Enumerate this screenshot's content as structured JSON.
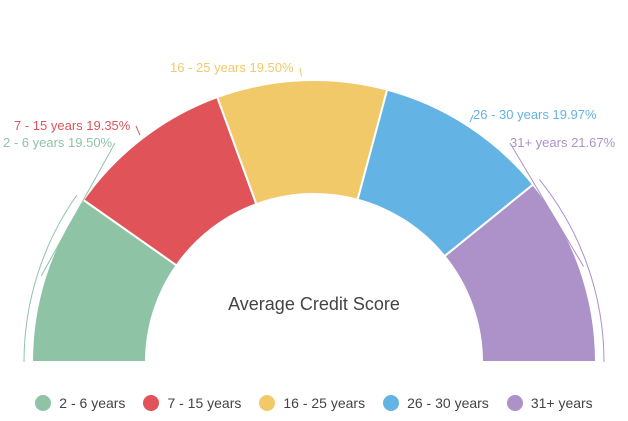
{
  "chart_data": {
    "type": "pie",
    "variant": "semi-donut",
    "title": "Average Credit Score",
    "categories": [
      "2 - 6 years",
      "7 - 15 years",
      "16 - 25 years",
      "26 - 30 years",
      "31+ years"
    ],
    "values": [
      19.5,
      19.35,
      19.5,
      19.97,
      21.67
    ],
    "labels": [
      "2 - 6 years 19.50%",
      "7 - 15 years 19.35%",
      "16 - 25 years 19.50%",
      "26 - 30 years 19.97%",
      "31+ years 21.67%"
    ],
    "colors": [
      "#8fc3a6",
      "#e05459",
      "#f2c968",
      "#63b4e4",
      "#ac92c8"
    ],
    "legend_position": "bottom"
  }
}
